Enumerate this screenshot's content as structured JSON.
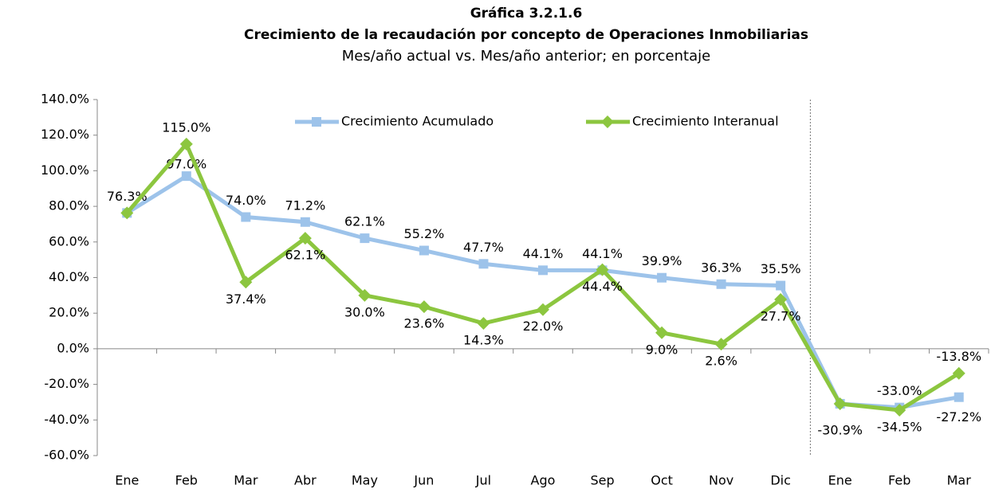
{
  "chart_data": {
    "type": "line",
    "title": "Gráfica 3.2.1.6",
    "subtitle": "Crecimiento de la recaudación por concepto de Operaciones Inmobiliarias",
    "subtitle2": "Mes/año actual vs. Mes/año anterior; en porcentaje",
    "categories": [
      "Ene",
      "Feb",
      "Mar",
      "Abr",
      "May",
      "Jun",
      "Jul",
      "Ago",
      "Sep",
      "Oct",
      "Nov",
      "Dic",
      "Ene",
      "Feb",
      "Mar"
    ],
    "series": [
      {
        "name": "Crecimiento Acumulado",
        "color": "#9dc3ea",
        "marker": "square",
        "values": [
          76.3,
          97.0,
          74.0,
          71.2,
          62.1,
          55.2,
          47.7,
          44.1,
          44.1,
          39.9,
          36.3,
          35.5,
          -30.9,
          -33.0,
          -27.2
        ],
        "value_labels": [
          "76.3%",
          "97.0%",
          "74.0%",
          "71.2%",
          "62.1%",
          "55.2%",
          "47.7%",
          "44.1%",
          "44.1%",
          "39.9%",
          "36.3%",
          "35.5%",
          "-30.9%",
          "-33.0%",
          "-27.2%"
        ]
      },
      {
        "name": "Crecimiento Interanual",
        "color": "#8cc63f",
        "marker": "diamond",
        "values": [
          76.3,
          115.0,
          37.4,
          62.1,
          30.0,
          23.6,
          14.3,
          22.0,
          44.4,
          9.0,
          2.6,
          27.7,
          -30.9,
          -34.5,
          -13.8
        ],
        "value_labels": [
          null,
          "115.0%",
          "37.4%",
          "62.1%",
          "30.0%",
          "23.6%",
          "14.3%",
          "22.0%",
          "44.4%",
          "9.0%",
          "2.6%",
          "27.7%",
          null,
          "-34.5%",
          "-13.8%"
        ]
      }
    ],
    "ylim": [
      -60,
      140
    ],
    "yticks": [
      {
        "value": -60,
        "label": "-60.0%"
      },
      {
        "value": -40,
        "label": "-40.0%"
      },
      {
        "value": -20,
        "label": "-20.0%"
      },
      {
        "value": 0,
        "label": "0.0%"
      },
      {
        "value": 20,
        "label": "20.0%"
      },
      {
        "value": 40,
        "label": "40.0%"
      },
      {
        "value": 60,
        "label": "60.0%"
      },
      {
        "value": 80,
        "label": "80.0%"
      },
      {
        "value": 100,
        "label": "100.0%"
      },
      {
        "value": 120,
        "label": "120.0%"
      },
      {
        "value": 140,
        "label": "140.0%"
      }
    ],
    "grid": false
  }
}
